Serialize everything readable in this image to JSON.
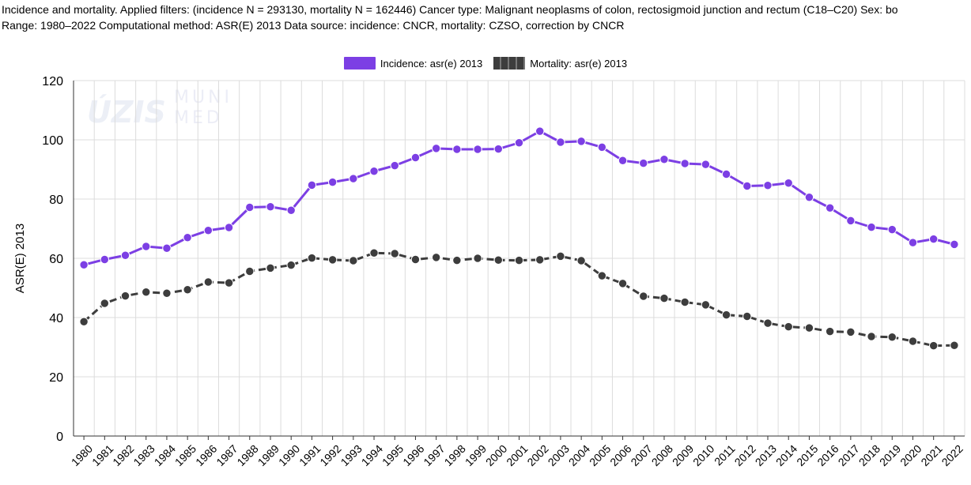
{
  "header": {
    "line1": "Incidence and mortality. Applied filters: (incidence N = 293130, mortality N = 162446) Cancer type: Malignant neoplasms of colon, rectosigmoid junction and rectum (C18–C20) Sex: bo",
    "line2": "Range: 1980–2022 Computational method: ASR(E) 2013 Data source: incidence: CNCR, mortality: CZSO, correction by CNCR"
  },
  "watermark": {
    "left": "ÚZIS",
    "right_top": "MUNI",
    "right_bottom": "MED"
  },
  "colors": {
    "incidence": "#7c3fe4",
    "mortality": "#3d3d3d",
    "grid": "#dcdcdc"
  },
  "chart_data": {
    "type": "line",
    "ylabel": "ASR(E) 2013",
    "xlabel": "",
    "ylim": [
      0,
      120
    ],
    "yticks": [
      0,
      20,
      40,
      60,
      80,
      100,
      120
    ],
    "grid": true,
    "legend_position": "top-center",
    "categories": [
      "1980",
      "1981",
      "1982",
      "1983",
      "1984",
      "1985",
      "1986",
      "1987",
      "1988",
      "1989",
      "1990",
      "1991",
      "1992",
      "1993",
      "1994",
      "1995",
      "1996",
      "1997",
      "1998",
      "1999",
      "2000",
      "2001",
      "2002",
      "2003",
      "2004",
      "2005",
      "2006",
      "2007",
      "2008",
      "2009",
      "2010",
      "2011",
      "2012",
      "2013",
      "2014",
      "2015",
      "2016",
      "2017",
      "2018",
      "2019",
      "2020",
      "2021",
      "2022"
    ],
    "series": [
      {
        "name": "Incidence: asr(e) 2013",
        "style": "solid",
        "values": [
          57.8,
          59.6,
          61.0,
          64.0,
          63.4,
          67.0,
          69.4,
          70.4,
          77.2,
          77.4,
          76.2,
          84.7,
          85.7,
          86.9,
          89.4,
          91.3,
          94.0,
          97.1,
          96.8,
          96.8,
          96.9,
          99.0,
          102.9,
          99.2,
          99.5,
          97.5,
          93.0,
          92.1,
          93.4,
          92.0,
          91.7,
          88.4,
          84.4,
          84.6,
          85.4,
          80.6,
          77.0,
          72.7,
          70.5,
          69.7,
          65.3,
          66.5,
          64.7
        ]
      },
      {
        "name": "Mortality: asr(e) 2013",
        "style": "dashed",
        "values": [
          38.6,
          44.8,
          47.3,
          48.6,
          48.2,
          49.4,
          52.0,
          51.7,
          55.6,
          56.7,
          57.7,
          60.1,
          59.5,
          59.2,
          61.8,
          61.6,
          59.6,
          60.3,
          59.3,
          60.0,
          59.4,
          59.3,
          59.5,
          60.7,
          59.2,
          54.1,
          51.5,
          47.2,
          46.5,
          45.2,
          44.3,
          40.9,
          40.4,
          38.1,
          36.9,
          36.5,
          35.3,
          35.1,
          33.6,
          33.4,
          32.0,
          30.5,
          30.6
        ]
      }
    ]
  }
}
